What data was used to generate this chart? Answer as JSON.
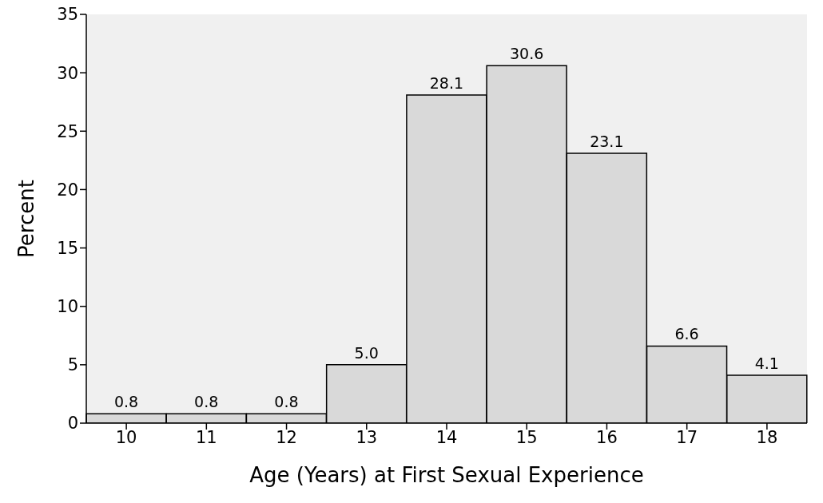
{
  "chart_data": {
    "type": "bar",
    "xlabel": "Age (Years) at First Sexual Experience",
    "ylabel": "Percent",
    "categories": [
      "10",
      "11",
      "12",
      "13",
      "14",
      "15",
      "16",
      "17",
      "18"
    ],
    "values": [
      0.8,
      0.8,
      0.8,
      5.0,
      28.1,
      30.6,
      23.1,
      6.6,
      4.1
    ],
    "value_labels": [
      "0.8",
      "0.8",
      "0.8",
      "5.0",
      "28.1",
      "30.6",
      "23.1",
      "6.6",
      "4.1"
    ],
    "color": "#d9d9d9",
    "ylim": [
      0,
      35
    ],
    "yticks": [
      0,
      5,
      10,
      15,
      20,
      25,
      30,
      35
    ],
    "grid": false
  }
}
